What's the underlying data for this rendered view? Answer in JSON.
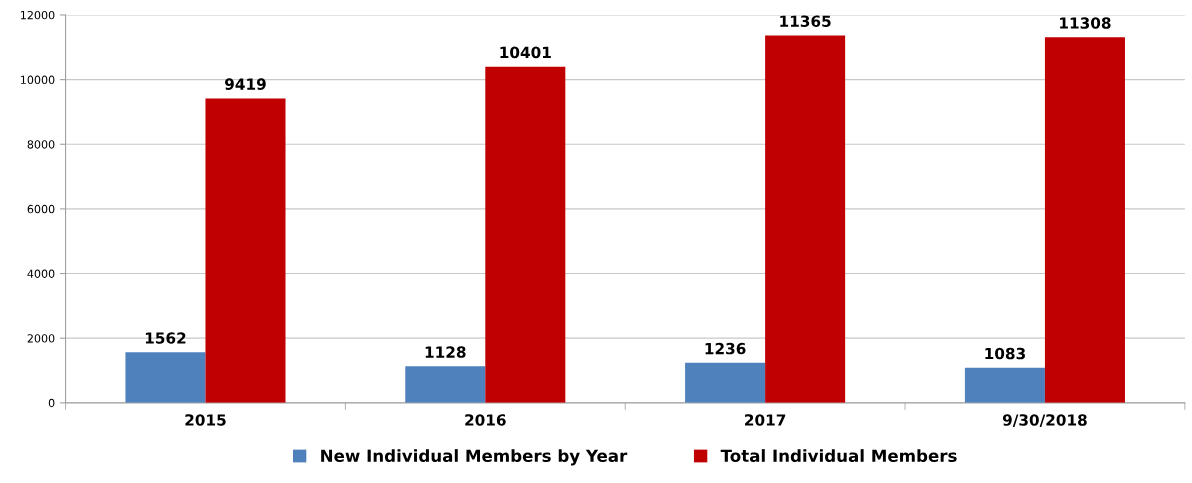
{
  "chart_data": {
    "type": "bar",
    "categories": [
      "2015",
      "2016",
      "2017",
      "9/30/2018"
    ],
    "series": [
      {
        "name": "New Individual Members by Year",
        "color": "#4f81bd",
        "values": [
          1562,
          1128,
          1236,
          1083
        ]
      },
      {
        "name": "Total Individual Members",
        "color": "#c00000",
        "values": [
          9419,
          10401,
          11365,
          11308
        ]
      }
    ],
    "ylim": [
      0,
      12000
    ],
    "yticks": [
      0,
      2000,
      4000,
      6000,
      8000,
      10000,
      12000
    ],
    "grid": "y",
    "legend": "bottom",
    "data_labels": true
  }
}
